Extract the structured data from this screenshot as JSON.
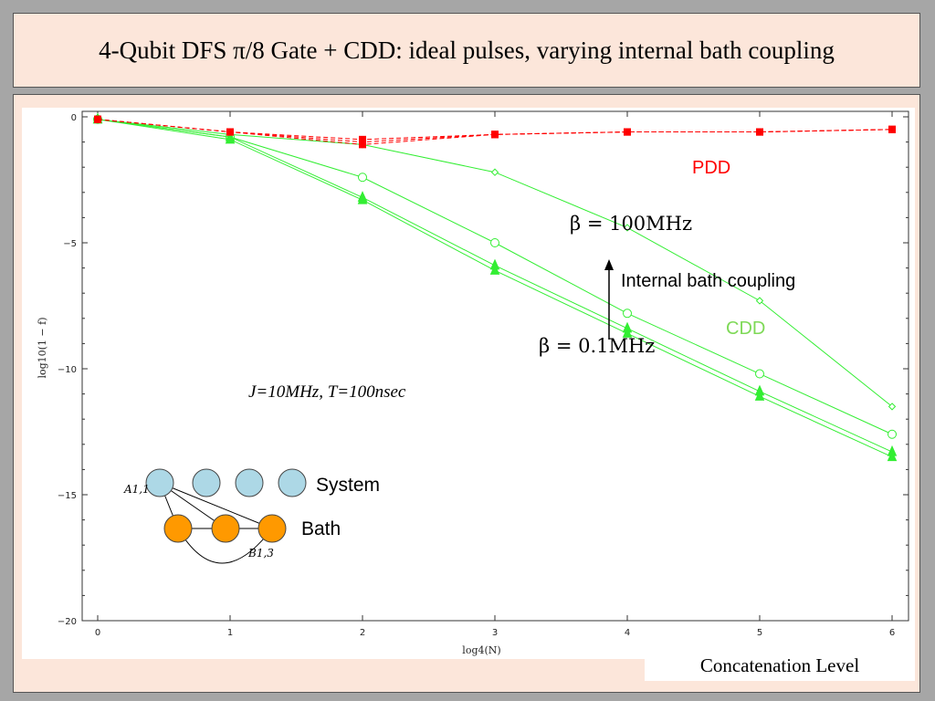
{
  "slide": {
    "title": "4-Qubit DFS π/8 Gate + CDD: ideal pulses, varying internal bath coupling",
    "caption": "Concatenation Level"
  },
  "chart_data": {
    "type": "line",
    "xlabel": "log4(N)",
    "ylabel": "log10(1 − f)",
    "xlim": [
      0,
      6
    ],
    "ylim": [
      -20,
      0
    ],
    "xticks": [
      0,
      1,
      2,
      3,
      4,
      5,
      6
    ],
    "yticks": [
      0,
      -5,
      -10,
      -15,
      -20
    ],
    "x_tick_labels": [
      "0",
      "1",
      "2",
      "3",
      "4",
      "5",
      "6"
    ],
    "y_tick_labels": [
      "0",
      "−5",
      "−10",
      "−15",
      "−20"
    ],
    "colors": {
      "pdd": "#ff0000",
      "cdd": "#33ee33"
    },
    "series": [
      {
        "group": "CDD",
        "marker": "diamond",
        "x": [
          0,
          1,
          2,
          3,
          4,
          5,
          6
        ],
        "y": [
          -0.1,
          -0.7,
          -1.1,
          -2.2,
          -4.4,
          -7.3,
          -11.5
        ]
      },
      {
        "group": "CDD",
        "marker": "circle",
        "x": [
          0,
          1,
          2,
          3,
          4,
          5,
          6
        ],
        "y": [
          -0.1,
          -0.8,
          -2.4,
          -5.0,
          -7.8,
          -10.2,
          -12.6
        ]
      },
      {
        "group": "CDD",
        "marker": "triangle",
        "x": [
          0,
          1,
          2,
          3,
          4,
          5,
          6
        ],
        "y": [
          -0.1,
          -0.8,
          -3.2,
          -5.9,
          -8.4,
          -10.9,
          -13.3
        ]
      },
      {
        "group": "CDD",
        "marker": "triangle",
        "x": [
          0,
          1,
          2,
          3,
          4,
          5,
          6
        ],
        "y": [
          -0.1,
          -0.9,
          -3.3,
          -6.1,
          -8.6,
          -11.1,
          -13.5
        ]
      },
      {
        "group": "PDD",
        "marker": "square",
        "x": [
          0,
          1,
          2,
          3,
          4,
          5,
          6
        ],
        "y": [
          -0.1,
          -0.6,
          -0.9,
          -0.7,
          -0.6,
          -0.6,
          -0.5
        ]
      },
      {
        "group": "PDD",
        "marker": "square",
        "x": [
          0,
          1,
          2,
          3,
          4,
          5,
          6
        ],
        "y": [
          -0.1,
          -0.6,
          -1.0,
          -0.7,
          -0.6,
          -0.6,
          -0.5
        ]
      },
      {
        "group": "PDD",
        "marker": "square",
        "x": [
          0,
          1,
          2,
          3,
          4,
          5,
          6
        ],
        "y": [
          -0.1,
          -0.6,
          -1.1,
          -0.7,
          -0.6,
          -0.6,
          -0.5
        ]
      }
    ],
    "annotations": {
      "pdd_label": "PDD",
      "cdd_label": "CDD",
      "beta_high": "β = 100MHz",
      "beta_low": "β = 0.1MHz",
      "arrow_label": "Internal bath coupling",
      "params": "J=10MHz, T=100nsec",
      "system_label": "System",
      "bath_label": "Bath",
      "a_label": "A1,1",
      "b_label": "B1,3"
    }
  }
}
